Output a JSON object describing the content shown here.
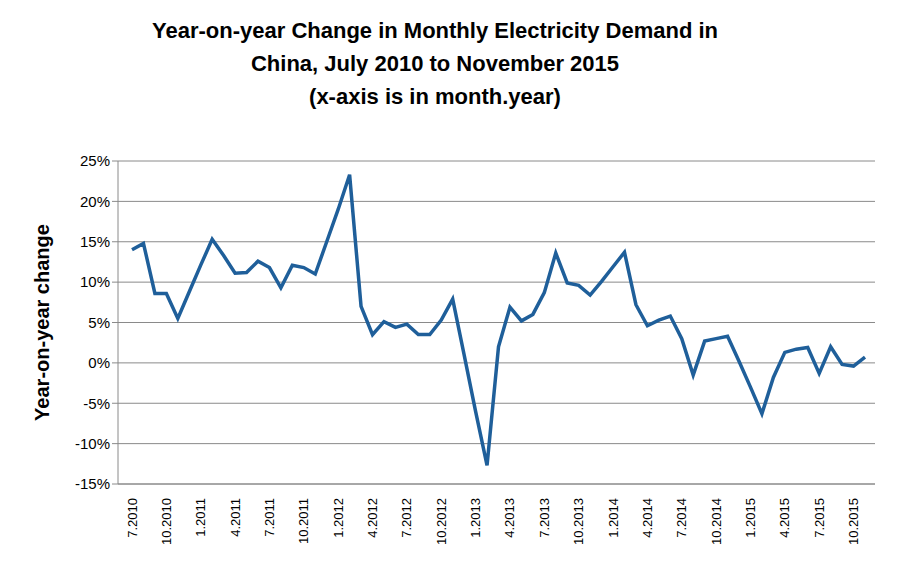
{
  "chart_data": {
    "type": "line",
    "title": [
      "Year-on-year Change in Monthly Electricity Demand in",
      "China, July 2010 to November 2015",
      "(x-axis is in month.year)"
    ],
    "y_label": "Year-on-year change",
    "categories": [
      "7.2010",
      null,
      null,
      "10.2010",
      null,
      null,
      "1.2011",
      null,
      null,
      "4.2011",
      null,
      null,
      "7.2011",
      null,
      null,
      "10.2011",
      null,
      null,
      "1.2012",
      null,
      null,
      "4.2012",
      null,
      null,
      "7.2012",
      null,
      null,
      "10.2012",
      null,
      null,
      "1.2013",
      null,
      null,
      "4.2013",
      null,
      null,
      "7.2013",
      null,
      null,
      "10.2013",
      null,
      null,
      "1.2014",
      null,
      null,
      "4.2014",
      null,
      null,
      "7.2014",
      null,
      null,
      "10.2014",
      null,
      null,
      "1.2015",
      null,
      null,
      "4.2015",
      null,
      null,
      "7.2015",
      null,
      null,
      "10.2015",
      null
    ],
    "values": [
      14,
      14.8,
      8.6,
      8.6,
      5.5,
      8.8,
      12.1,
      15.3,
      13.3,
      11.1,
      11.2,
      12.6,
      11.8,
      9.3,
      12.1,
      11.8,
      11,
      15,
      19,
      23.3,
      7,
      3.5,
      5.1,
      4.4,
      4.8,
      3.5,
      3.5,
      5.3,
      7.9,
      1,
      -6,
      -12.7,
      2,
      6.9,
      5.2,
      6,
      8.7,
      13.6,
      9.9,
      9.6,
      8.4,
      10.1,
      11.9,
      13.7,
      7.2,
      4.6,
      5.3,
      5.8,
      3,
      -1.5,
      2.7,
      3,
      3.3,
      0.2,
      -3,
      -6.3,
      -1.8,
      1.3,
      1.7,
      1.9,
      -1.3,
      2,
      -0.2,
      -0.4,
      0.7
    ],
    "color": "#1f5f9a",
    "ylim": [
      -15,
      25
    ],
    "yticks": [
      {
        "value": -15,
        "label": "-15%"
      },
      {
        "value": -10,
        "label": "-10%"
      },
      {
        "value": -5,
        "label": "-5%"
      },
      {
        "value": 0,
        "label": "0%"
      },
      {
        "value": 5,
        "label": "5%"
      },
      {
        "value": 10,
        "label": "10%"
      },
      {
        "value": 15,
        "label": "15%"
      },
      {
        "value": 20,
        "label": "20%"
      },
      {
        "value": 25,
        "label": "25%"
      }
    ],
    "grid": true
  }
}
